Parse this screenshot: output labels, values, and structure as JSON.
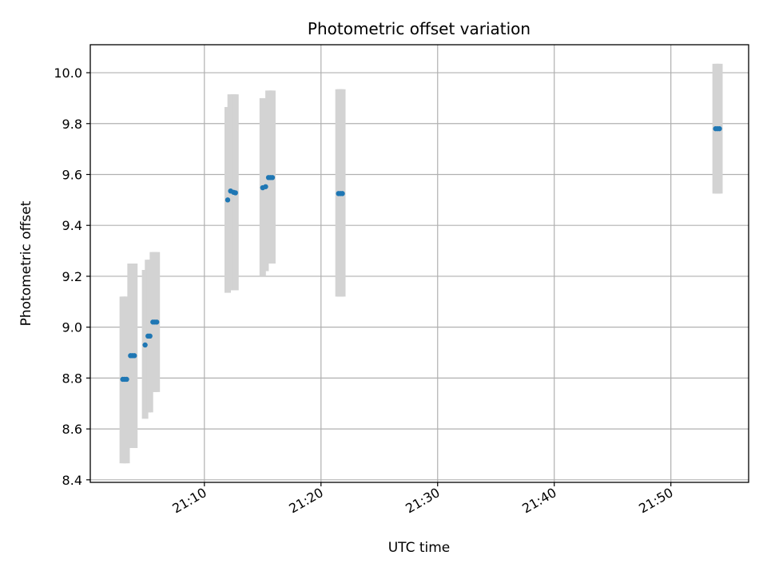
{
  "chart_data": {
    "type": "scatter",
    "title": "Photometric offset variation",
    "xlabel": "UTC time",
    "ylabel": "Photometric offset",
    "x_tick_labels": [
      "21:10",
      "21:20",
      "21:30",
      "21:40",
      "21:50"
    ],
    "y_tick_labels": [
      "8.4",
      "8.6",
      "8.8",
      "9.0",
      "9.2",
      "9.4",
      "9.6",
      "9.8",
      "10.0"
    ],
    "xlim": [
      "21:00:13",
      "21:56:40"
    ],
    "ylim": [
      8.39,
      10.11
    ],
    "grid": true,
    "legend": "none",
    "colors": {
      "points": "#1f77b4",
      "error_bars": "#d3d3d3"
    },
    "points": [
      {
        "x": "21:03:00",
        "y": 8.795,
        "yerr_low": 8.465,
        "yerr_high": 9.12
      },
      {
        "x": "21:03:10",
        "y": 8.795,
        "yerr_low": 8.465,
        "yerr_high": 9.12
      },
      {
        "x": "21:03:20",
        "y": 8.795,
        "yerr_low": 8.465,
        "yerr_high": 9.12
      },
      {
        "x": "21:03:40",
        "y": 8.888,
        "yerr_low": 8.525,
        "yerr_high": 9.25
      },
      {
        "x": "21:03:50",
        "y": 8.888,
        "yerr_low": 8.525,
        "yerr_high": 9.25
      },
      {
        "x": "21:04:00",
        "y": 8.888,
        "yerr_low": 8.525,
        "yerr_high": 9.25
      },
      {
        "x": "21:04:55",
        "y": 8.93,
        "yerr_low": 8.64,
        "yerr_high": 9.225
      },
      {
        "x": "21:05:10",
        "y": 8.965,
        "yerr_low": 8.665,
        "yerr_high": 9.265
      },
      {
        "x": "21:05:20",
        "y": 8.965,
        "yerr_low": 8.665,
        "yerr_high": 9.265
      },
      {
        "x": "21:05:35",
        "y": 9.02,
        "yerr_low": 8.745,
        "yerr_high": 9.295
      },
      {
        "x": "21:05:45",
        "y": 9.02,
        "yerr_low": 8.745,
        "yerr_high": 9.295
      },
      {
        "x": "21:05:55",
        "y": 9.02,
        "yerr_low": 8.745,
        "yerr_high": 9.295
      },
      {
        "x": "21:12:00",
        "y": 9.5,
        "yerr_low": 9.135,
        "yerr_high": 9.865
      },
      {
        "x": "21:12:15",
        "y": 9.535,
        "yerr_low": 9.155,
        "yerr_high": 9.915
      },
      {
        "x": "21:12:30",
        "y": 9.53,
        "yerr_low": 9.145,
        "yerr_high": 9.915
      },
      {
        "x": "21:12:40",
        "y": 9.528,
        "yerr_low": 9.145,
        "yerr_high": 9.915
      },
      {
        "x": "21:15:00",
        "y": 9.548,
        "yerr_low": 9.2,
        "yerr_high": 9.9
      },
      {
        "x": "21:15:15",
        "y": 9.552,
        "yerr_low": 9.22,
        "yerr_high": 9.89
      },
      {
        "x": "21:15:30",
        "y": 9.588,
        "yerr_low": 9.25,
        "yerr_high": 9.93
      },
      {
        "x": "21:15:40",
        "y": 9.588,
        "yerr_low": 9.25,
        "yerr_high": 9.93
      },
      {
        "x": "21:15:50",
        "y": 9.588,
        "yerr_low": 9.25,
        "yerr_high": 9.93
      },
      {
        "x": "21:21:30",
        "y": 9.525,
        "yerr_low": 9.12,
        "yerr_high": 9.935
      },
      {
        "x": "21:21:40",
        "y": 9.525,
        "yerr_low": 9.12,
        "yerr_high": 9.935
      },
      {
        "x": "21:21:50",
        "y": 9.525,
        "yerr_low": 9.12,
        "yerr_high": 9.935
      },
      {
        "x": "21:53:50",
        "y": 9.78,
        "yerr_low": 9.525,
        "yerr_high": 10.035
      },
      {
        "x": "21:54:00",
        "y": 9.78,
        "yerr_low": 9.525,
        "yerr_high": 10.035
      },
      {
        "x": "21:54:10",
        "y": 9.78,
        "yerr_low": 9.525,
        "yerr_high": 10.035
      }
    ]
  }
}
